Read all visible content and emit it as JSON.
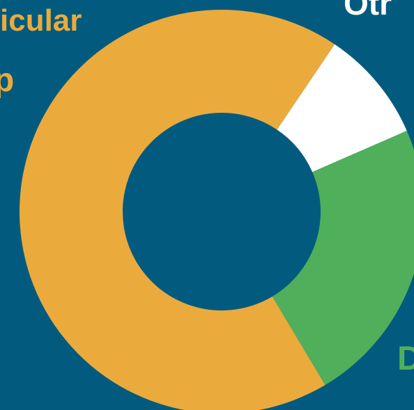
{
  "chart_data": {
    "type": "pie",
    "donut": true,
    "categories": [
      "icular",
      "Otr",
      "D"
    ],
    "values": [
      68,
      9,
      23
    ],
    "colors": [
      "#EBAA3C",
      "#FFFFFF",
      "#4FAF5A"
    ],
    "label_colors": [
      "#EBAA3C",
      "#FFFFFF",
      "#4FAF5A"
    ],
    "fragment": "p",
    "background": "#025B7E"
  }
}
